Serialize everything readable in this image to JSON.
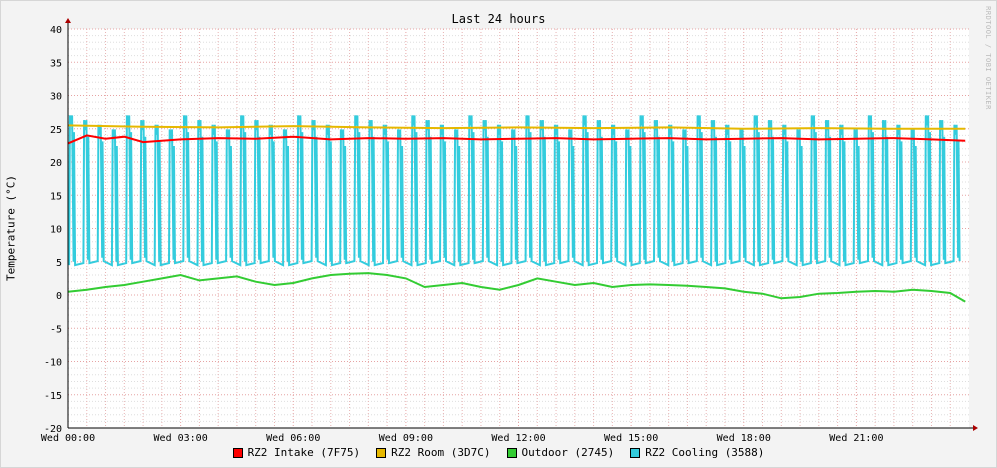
{
  "chart_data": {
    "type": "line",
    "title": "Last 24 hours",
    "ylabel": "Temperature (°C)",
    "xlabel": "",
    "watermark": "RRDTOOL / TOBI OETIKER",
    "ylim": [
      -20,
      40
    ],
    "xlim_hours": [
      0,
      24
    ],
    "y_ticks": [
      "40",
      "35",
      "30",
      "25",
      "20",
      "15",
      "10",
      "5",
      "0",
      "-5",
      "-10",
      "-15",
      "-20"
    ],
    "x_ticks": [
      {
        "hour": 0,
        "label": "Wed 00:00"
      },
      {
        "hour": 3,
        "label": "Wed 03:00"
      },
      {
        "hour": 6,
        "label": "Wed 06:00"
      },
      {
        "hour": 9,
        "label": "Wed 09:00"
      },
      {
        "hour": 12,
        "label": "Wed 12:00"
      },
      {
        "hour": 15,
        "label": "Wed 15:00"
      },
      {
        "hour": 18,
        "label": "Wed 18:00"
      },
      {
        "hour": 21,
        "label": "Wed 21:00"
      }
    ],
    "grid": true,
    "legend_position": "bottom",
    "series": [
      {
        "name": "RZ2 Intake (7F75)",
        "color": "#ff0000",
        "x": [
          0,
          0.5,
          1,
          1.5,
          2,
          3,
          4,
          5,
          6,
          7,
          8,
          9,
          10,
          11,
          12,
          13,
          14,
          15,
          16,
          17,
          18,
          19,
          20,
          21,
          22,
          23,
          23.9
        ],
        "y": [
          22.8,
          24.0,
          23.5,
          23.8,
          23.0,
          23.4,
          23.6,
          23.5,
          23.8,
          23.4,
          23.6,
          23.5,
          23.6,
          23.4,
          23.5,
          23.6,
          23.4,
          23.5,
          23.6,
          23.4,
          23.5,
          23.6,
          23.4,
          23.5,
          23.6,
          23.4,
          23.2
        ]
      },
      {
        "name": "RZ2 Room (3D7C)",
        "color": "#e6b800",
        "x": [
          0,
          2,
          4,
          6,
          8,
          10,
          12,
          14,
          16,
          18,
          20,
          22,
          23.9
        ],
        "y": [
          25.5,
          25.3,
          25.2,
          25.4,
          25.2,
          25.1,
          25.2,
          25.1,
          25.2,
          25.0,
          25.1,
          25.0,
          25.0
        ]
      },
      {
        "name": "Outdoor (2745)",
        "color": "#33cc33",
        "x": [
          0,
          0.5,
          1,
          1.5,
          2,
          2.5,
          3,
          3.5,
          4,
          4.5,
          5,
          5.5,
          6,
          6.5,
          7,
          7.5,
          8,
          8.5,
          9,
          9.5,
          10,
          10.5,
          11,
          11.5,
          12,
          12.5,
          13,
          13.5,
          14,
          14.5,
          15,
          15.5,
          16,
          16.5,
          17,
          17.5,
          18,
          18.5,
          19,
          19.5,
          20,
          20.5,
          21,
          21.5,
          22,
          22.5,
          23,
          23.5,
          23.9
        ],
        "y": [
          0.5,
          0.8,
          1.2,
          1.5,
          2.0,
          2.5,
          3.0,
          2.2,
          2.5,
          2.8,
          2.0,
          1.5,
          1.8,
          2.5,
          3.0,
          3.2,
          3.3,
          3.0,
          2.5,
          1.2,
          1.5,
          1.8,
          1.2,
          0.8,
          1.5,
          2.5,
          2.0,
          1.5,
          1.8,
          1.2,
          1.5,
          1.6,
          1.5,
          1.4,
          1.2,
          1.0,
          0.5,
          0.2,
          -0.5,
          -0.3,
          0.2,
          0.3,
          0.5,
          0.6,
          0.5,
          0.8,
          0.6,
          0.3,
          -1.0
        ]
      },
      {
        "name": "RZ2 Cooling (3588)",
        "color": "#33ccdd",
        "period_hours": 0.38,
        "min": 4.5,
        "max": 27.0
      }
    ]
  }
}
